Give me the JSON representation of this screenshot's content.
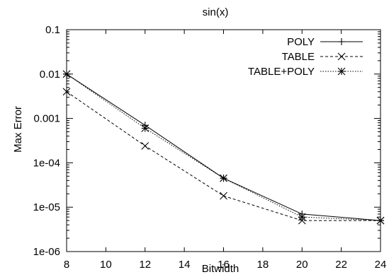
{
  "chart_data": {
    "type": "line",
    "title": "sin(x)",
    "xlabel": "Bitwidth",
    "ylabel": "Max Error",
    "x": [
      8,
      12,
      16,
      20,
      24
    ],
    "xlim": [
      8,
      24
    ],
    "xticks": [
      "8",
      "10",
      "12",
      "14",
      "16",
      "18",
      "20",
      "22",
      "24"
    ],
    "ylim": [
      1e-06,
      0.1
    ],
    "yscale": "log",
    "yticks": [
      {
        "value": 0.1,
        "label": "0.1"
      },
      {
        "value": 0.01,
        "label": "0.01"
      },
      {
        "value": 0.001,
        "label": "0.001"
      },
      {
        "value": 0.0001,
        "label": "1e-04"
      },
      {
        "value": 1e-05,
        "label": "1e-05"
      },
      {
        "value": 1e-06,
        "label": "1e-06"
      }
    ],
    "grid": false,
    "legend_position": "top-right",
    "series": [
      {
        "name": "POLY",
        "marker": "plus",
        "dash": "solid",
        "values": [
          0.01,
          0.0007,
          4.5e-05,
          7e-06,
          5e-06
        ]
      },
      {
        "name": "TABLE",
        "marker": "cross",
        "dash": "dashed",
        "values": [
          0.004,
          0.00024,
          1.8e-05,
          5e-06,
          5e-06
        ]
      },
      {
        "name": "TABLE+POLY",
        "marker": "star",
        "dash": "dotted",
        "values": [
          0.01,
          0.0006,
          4.5e-05,
          6e-06,
          5e-06
        ]
      }
    ]
  }
}
